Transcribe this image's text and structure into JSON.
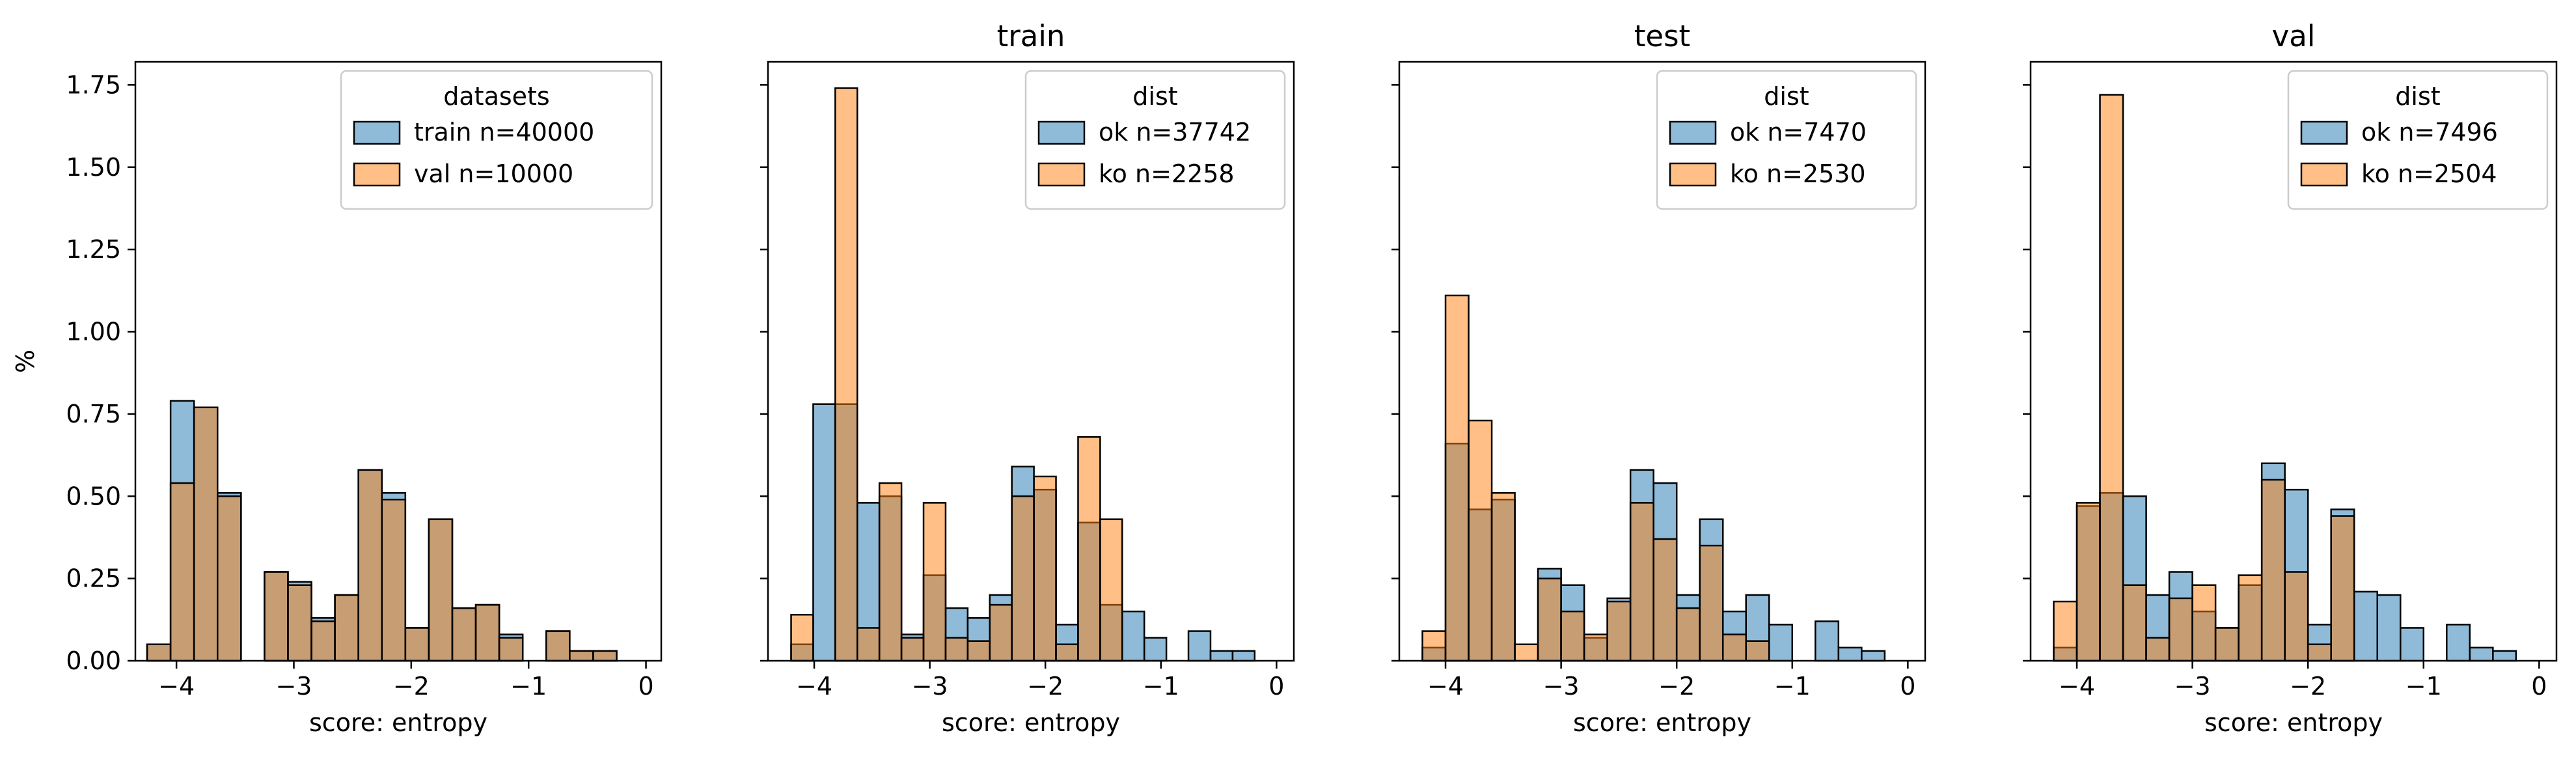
{
  "figure": {
    "shared_ylabel": "%"
  },
  "colors": {
    "blue": "#1f77b4",
    "orange": "#ff7f0e",
    "edge": "#000000"
  },
  "chart_data": [
    {
      "type": "histogram",
      "title": "",
      "xlabel": "score: entropy",
      "ylabel": "%",
      "xlim": [
        -4.35,
        0.13
      ],
      "ylim": [
        0,
        1.82
      ],
      "xticks": [
        -4,
        -3,
        -2,
        -1,
        0
      ],
      "xtick_labels": [
        "−4",
        "−3",
        "−2",
        "−1",
        "0"
      ],
      "yticks": [
        0,
        0.25,
        0.5,
        0.75,
        1.0,
        1.25,
        1.5,
        1.75
      ],
      "ytick_labels": [
        "0.00",
        "0.25",
        "0.50",
        "0.75",
        "1.00",
        "1.25",
        "1.50",
        "1.75"
      ],
      "legend": {
        "title": "datasets",
        "position": "upper right"
      },
      "grid": false,
      "bin_width": 0.2,
      "bin_starts": [
        -4.25,
        -4.05,
        -3.85,
        -3.65,
        -3.45,
        -3.25,
        -3.05,
        -2.85,
        -2.65,
        -2.45,
        -2.25,
        -2.05,
        -1.85,
        -1.65,
        -1.45,
        -1.25,
        -1.05,
        -0.85,
        -0.65,
        -0.45,
        -0.25
      ],
      "series": [
        {
          "name": "train n=40000",
          "color": "blue",
          "values": [
            0.05,
            0.79,
            0.77,
            0.51,
            0.0,
            0.27,
            0.24,
            0.13,
            0.2,
            0.58,
            0.51,
            0.1,
            0.43,
            0.16,
            0.17,
            0.08,
            0.0,
            0.09,
            0.03,
            0.03,
            0.0
          ]
        },
        {
          "name": "val n=10000",
          "color": "orange",
          "values": [
            0.05,
            0.54,
            0.77,
            0.5,
            0.0,
            0.27,
            0.23,
            0.12,
            0.2,
            0.58,
            0.49,
            0.1,
            0.43,
            0.16,
            0.17,
            0.07,
            0.0,
            0.09,
            0.03,
            0.03,
            0.0
          ]
        }
      ]
    },
    {
      "type": "histogram",
      "title": "train",
      "xlabel": "score: entropy",
      "ylabel": "",
      "xlim": [
        -4.4,
        0.15
      ],
      "ylim": [
        0,
        1.82
      ],
      "xticks": [
        -4,
        -3,
        -2,
        -1,
        0
      ],
      "xtick_labels": [
        "−4",
        "−3",
        "−2",
        "−1",
        "0"
      ],
      "legend": {
        "title": "dist",
        "position": "upper right"
      },
      "grid": false,
      "bin_width": 0.191,
      "bin_starts": [
        -4.2,
        -4.009,
        -3.818,
        -3.627,
        -3.436,
        -3.245,
        -3.054,
        -2.863,
        -2.672,
        -2.481,
        -2.29,
        -2.099,
        -1.908,
        -1.717,
        -1.526,
        -1.335,
        -1.144,
        -0.953,
        -0.762,
        -0.571,
        -0.38,
        -0.189
      ],
      "series": [
        {
          "name": "ok n=37742",
          "color": "blue",
          "values": [
            0.05,
            0.78,
            0.78,
            0.48,
            0.5,
            0.08,
            0.26,
            0.16,
            0.13,
            0.2,
            0.59,
            0.52,
            0.11,
            0.42,
            0.17,
            0.15,
            0.07,
            0.0,
            0.09,
            0.03,
            0.03,
            0.0
          ]
        },
        {
          "name": "ko n=2258",
          "color": "orange",
          "values": [
            0.14,
            0.0,
            1.74,
            0.1,
            0.54,
            0.07,
            0.48,
            0.07,
            0.06,
            0.17,
            0.5,
            0.56,
            0.05,
            0.68,
            0.43,
            0.0,
            0.0,
            0.0,
            0.0,
            0.0,
            0.0,
            0.0
          ]
        }
      ]
    },
    {
      "type": "histogram",
      "title": "test",
      "xlabel": "score: entropy",
      "ylabel": "",
      "xlim": [
        -4.4,
        0.15
      ],
      "ylim": [
        0,
        1.82
      ],
      "xticks": [
        -4,
        -3,
        -2,
        -1,
        0
      ],
      "xtick_labels": [
        "−4",
        "−3",
        "−2",
        "−1",
        "0"
      ],
      "legend": {
        "title": "dist",
        "position": "upper right"
      },
      "grid": false,
      "bin_width": 0.2,
      "bin_starts": [
        -4.2,
        -4.0,
        -3.8,
        -3.6,
        -3.4,
        -3.2,
        -3.0,
        -2.8,
        -2.6,
        -2.4,
        -2.2,
        -2.0,
        -1.8,
        -1.6,
        -1.4,
        -1.2,
        -1.0,
        -0.8,
        -0.6,
        -0.4,
        -0.2
      ],
      "series": [
        {
          "name": "ok n=7470",
          "color": "blue",
          "values": [
            0.04,
            0.66,
            0.46,
            0.49,
            0.0,
            0.28,
            0.23,
            0.07,
            0.19,
            0.58,
            0.54,
            0.2,
            0.43,
            0.15,
            0.2,
            0.11,
            0.0,
            0.12,
            0.04,
            0.03,
            0.0
          ]
        },
        {
          "name": "ko n=2530",
          "color": "orange",
          "values": [
            0.09,
            1.11,
            0.73,
            0.51,
            0.05,
            0.25,
            0.15,
            0.08,
            0.18,
            0.48,
            0.37,
            0.16,
            0.35,
            0.08,
            0.06,
            0.0,
            0.0,
            0.0,
            0.0,
            0.0,
            0.0
          ]
        }
      ]
    },
    {
      "type": "histogram",
      "title": "val",
      "xlabel": "score: entropy",
      "ylabel": "",
      "xlim": [
        -4.4,
        0.15
      ],
      "ylim": [
        0,
        1.82
      ],
      "xticks": [
        -4,
        -3,
        -2,
        -1,
        0
      ],
      "xtick_labels": [
        "−4",
        "−3",
        "−2",
        "−1",
        "0"
      ],
      "legend": {
        "title": "dist",
        "position": "upper right"
      },
      "grid": false,
      "bin_width": 0.2,
      "bin_starts": [
        -4.2,
        -4.0,
        -3.8,
        -3.6,
        -3.4,
        -3.2,
        -3.0,
        -2.8,
        -2.6,
        -2.4,
        -2.2,
        -2.0,
        -1.8,
        -1.6,
        -1.4,
        -1.2,
        -1.0,
        -0.8,
        -0.6,
        -0.4,
        -0.2
      ],
      "series": [
        {
          "name": "ok n=7496",
          "color": "blue",
          "values": [
            0.04,
            0.47,
            0.51,
            0.5,
            0.2,
            0.27,
            0.15,
            0.1,
            0.23,
            0.6,
            0.52,
            0.11,
            0.46,
            0.21,
            0.2,
            0.1,
            0.0,
            0.11,
            0.04,
            0.03,
            0.0
          ]
        },
        {
          "name": "ko n=2504",
          "color": "orange",
          "values": [
            0.18,
            0.48,
            1.72,
            0.23,
            0.07,
            0.19,
            0.23,
            0.1,
            0.26,
            0.55,
            0.27,
            0.05,
            0.44,
            0.0,
            0.0,
            0.0,
            0.0,
            0.0,
            0.0,
            0.0,
            0.0
          ]
        }
      ]
    }
  ]
}
